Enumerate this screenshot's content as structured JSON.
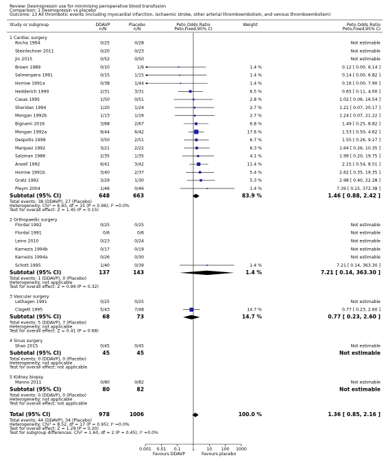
{
  "header": {
    "review": "Review: Desmopressin use for minimising perioperative blood transfusion",
    "comparison": "Comparison: 1 Desmopressin vs placebo",
    "outcome": "Outcome: 13 All thrombotic events (including myocardial infarction, ischaemic stroke, other arterial thromboembolism, and venous thromboembolism)"
  },
  "chart_data": {
    "type": "forest",
    "columns": {
      "study": "Study or subgroup",
      "group1": "DDAVP",
      "group1_sub": "n/N",
      "group2": "Placebo",
      "group2_sub": "n/N",
      "effect": "Peto Odds Ratio",
      "effect_sub": "Peto,Fixed,95% CI",
      "weight": "Weight",
      "effect_ci": "Peto Odds Ratio",
      "effect_ci_sub": "Peto,Fixed,95% CI"
    },
    "subgroups": [
      {
        "name": "1 Cardiac surgery",
        "studies": [
          {
            "name": "Rocha 1994",
            "ddavp": "0/25",
            "placebo": "0/28",
            "ci_label": "Not estimable"
          },
          {
            "name": "Steinlechner 2011",
            "ddavp": "0/20",
            "placebo": "0/23",
            "ci_label": "Not estimable"
          },
          {
            "name": "Jin 2015",
            "ddavp": "0/52",
            "placebo": "0/50",
            "ci_label": "Not estimable"
          },
          {
            "name": "Brown 1989",
            "ddavp": "0/10",
            "placebo": "1/9",
            "weight": 1.4,
            "weight_label": "1.4 %",
            "or": 0.12,
            "lo": 0.0,
            "hi": 6.14,
            "ci_label": "0.12 [ 0.00, 6.14 ]"
          },
          {
            "name": "Salmenpera 1991",
            "ddavp": "0/15",
            "placebo": "1/15",
            "weight": 1.4,
            "weight_label": "1.4 %",
            "or": 0.14,
            "lo": 0.0,
            "hi": 6.82,
            "ci_label": "0.14 [ 0.00, 6.82 ]"
          },
          {
            "name": "Horrow 1991a",
            "ddavp": "0/38",
            "placebo": "1/44",
            "weight": 1.4,
            "weight_label": "1.4 %",
            "or": 0.16,
            "lo": 0.0,
            "hi": 7.9,
            "ci_label": "0.16 [ 0.00, 7.90 ]"
          },
          {
            "name": "Hedderich 1990",
            "ddavp": "2/31",
            "placebo": "3/31",
            "weight": 6.5,
            "weight_label": "6.5 %",
            "or": 0.65,
            "lo": 0.11,
            "hi": 4.0,
            "ci_label": "0.65 [ 0.11, 4.00 ]"
          },
          {
            "name": "Casas 1995",
            "ddavp": "1/50",
            "placebo": "0/51",
            "weight": 2.8,
            "weight_label": "2.8 %",
            "or": 1.02,
            "lo": 0.06,
            "hi": 16.54,
            "ci_label": "1.02 [ 0.06, 16.54 ]"
          },
          {
            "name": "Sheridan 1994",
            "ddavp": "1/20",
            "placebo": "1/24",
            "weight": 2.7,
            "weight_label": "2.7 %",
            "or": 1.21,
            "lo": 0.07,
            "hi": 20.17,
            "ci_label": "1.21 [ 0.07, 20.17 ]"
          },
          {
            "name": "Mongan 1992b",
            "ddavp": "1/13",
            "placebo": "1/16",
            "weight": 2.7,
            "weight_label": "2.7 %",
            "or": 1.24,
            "lo": 0.07,
            "hi": 21.22,
            "ci_label": "1.24 [ 0.07, 21.22 ]"
          },
          {
            "name": "Bignami 2016",
            "ddavp": "3/68",
            "placebo": "2/67",
            "weight": 6.8,
            "weight_label": "6.8 %",
            "or": 1.49,
            "lo": 0.25,
            "hi": 8.82,
            "ci_label": "1.49 [ 0.25, 8.82 ]"
          },
          {
            "name": "Mongan 1992a",
            "ddavp": "9/44",
            "placebo": "6/42",
            "weight": 17.6,
            "weight_label": "17.6 %",
            "or": 1.53,
            "lo": 0.5,
            "hi": 4.62,
            "ci_label": "1.53 [ 0.50, 4.62 ]"
          },
          {
            "name": "Despotis 1999",
            "ddavp": "3/50",
            "placebo": "2/51",
            "weight": 6.7,
            "weight_label": "6.7 %",
            "or": 1.55,
            "lo": 0.26,
            "hi": 9.27,
            "ci_label": "1.55 [ 0.26, 9.27 ]"
          },
          {
            "name": "Marquez 1992",
            "ddavp": "3/21",
            "placebo": "2/22",
            "weight": 6.3,
            "weight_label": "6.3 %",
            "or": 1.64,
            "lo": 0.26,
            "hi": 10.35,
            "ci_label": "1.64 [ 0.26, 10.35 ]"
          },
          {
            "name": "Salzman 1986",
            "ddavp": "2/35",
            "placebo": "1/35",
            "weight": 4.1,
            "weight_label": "4.1 %",
            "or": 1.99,
            "lo": 0.2,
            "hi": 19.75,
            "ci_label": "1.99 [ 0.20, 19.75 ]"
          },
          {
            "name": "Ansell 1992",
            "ddavp": "6/41",
            "placebo": "3/42",
            "weight": 11.4,
            "weight_label": "11.4 %",
            "or": 2.15,
            "lo": 0.54,
            "hi": 8.51,
            "ci_label": "2.15 [ 0.54, 8.51 ]"
          },
          {
            "name": "Horrow 1991b",
            "ddavp": "3/40",
            "placebo": "2/37",
            "weight": 5.4,
            "weight_label": "5.4 %",
            "or": 2.62,
            "lo": 0.35,
            "hi": 19.35,
            "ci_label": "2.62 [ 0.35, 19.35 ]"
          },
          {
            "name": "Gratz 1992",
            "ddavp": "3/29",
            "placebo": "1/30",
            "weight": 5.3,
            "weight_label": "5.3 %",
            "or": 2.98,
            "lo": 0.4,
            "hi": 22.28,
            "ci_label": "2.98 [ 0.40, 22.28 ]"
          },
          {
            "name": "Pleym 2004",
            "ddavp": "1/46",
            "placebo": "0/46",
            "weight": 1.4,
            "weight_label": "1.4 %",
            "or": 7.39,
            "lo": 0.15,
            "hi": 372.38,
            "ci_label": "7.39 [ 0.15, 372.38 ]"
          }
        ],
        "subtotal": {
          "label": "Subtotal (95% CI)",
          "ddavp": 648,
          "placebo": 663,
          "weight": 83.9,
          "weight_label": "83.9 %",
          "or": 1.46,
          "lo": 0.88,
          "hi": 2.42,
          "ci_label": "1.46 [ 0.88, 2.42 ]"
        },
        "notes": [
          "Total events: 38 (DDAVP), 27 (Placebo)",
          "Heterogeneity: Chi² = 6.93, df = 15 (P = 0.96); I² =0.0%",
          "Test for overall effect: Z = 1.45 (P = 0.15)"
        ]
      },
      {
        "name": "2 Orthopaedic surgery",
        "studies": [
          {
            "name": "Flordal 1992",
            "ddavp": "0/25",
            "placebo": "0/25",
            "ci_label": "Not estimable"
          },
          {
            "name": "Flordal 1991",
            "ddavp": "0/6",
            "placebo": "0/6",
            "ci_label": "Not estimable"
          },
          {
            "name": "Leino 2010",
            "ddavp": "0/23",
            "placebo": "0/24",
            "ci_label": "Not estimable"
          },
          {
            "name": "Karnezis 1994b",
            "ddavp": "0/17",
            "placebo": "0/19",
            "ci_label": "Not estimable"
          },
          {
            "name": "Karnezis 1994a",
            "ddavp": "0/26",
            "placebo": "0/30",
            "ci_label": "Not estimable"
          },
          {
            "name": "Schott 1995",
            "ddavp": "1/40",
            "placebo": "0/39",
            "weight": 1.4,
            "weight_label": "1.4 %",
            "or": 7.21,
            "lo": 0.14,
            "hi": 363.3,
            "ci_label": "7.21 [ 0.14, 363.30 ]"
          }
        ],
        "subtotal": {
          "label": "Subtotal (95% CI)",
          "ddavp": 137,
          "placebo": 143,
          "weight": 1.4,
          "weight_label": "1.4 %",
          "or": 7.21,
          "lo": 0.14,
          "hi": 363.3,
          "ci_label": "7.21 [ 0.14, 363.30 ]"
        },
        "notes": [
          "Total events: 1 (DDAVP), 0 (Placebo)",
          "Heterogeneity: not applicable",
          "Test for overall effect: Z = 0.99 (P = 0.32)"
        ]
      },
      {
        "name": "3 Vascular surgery",
        "studies": [
          {
            "name": "Lethagen 1991",
            "ddavp": "0/25",
            "placebo": "0/25",
            "ci_label": "Not estimable"
          },
          {
            "name": "Clagett 1995",
            "ddavp": "5/43",
            "placebo": "7/48",
            "weight": 14.7,
            "weight_label": "14.7 %",
            "or": 0.77,
            "lo": 0.23,
            "hi": 2.6,
            "ci_label": "0.77 [ 0.23, 2.60 ]"
          }
        ],
        "subtotal": {
          "label": "Subtotal (95% CI)",
          "ddavp": 68,
          "placebo": 73,
          "weight": 14.7,
          "weight_label": "14.7 %",
          "or": 0.77,
          "lo": 0.23,
          "hi": 2.6,
          "ci_label": "0.77 [ 0.23, 2.60 ]"
        },
        "notes": [
          "Total events: 5 (DDAVP), 7 (Placebo)",
          "Heterogeneity: not applicable",
          "Test for overall effect: Z = 0.41 (P = 0.68)"
        ]
      },
      {
        "name": "4 Sinus surgery",
        "studies": [
          {
            "name": "Shao 2015",
            "ddavp": "0/45",
            "placebo": "0/45",
            "ci_label": "Not estimable"
          }
        ],
        "subtotal": {
          "label": "Subtotal (95% CI)",
          "ddavp": 45,
          "placebo": 45,
          "ci_label": "Not estimable"
        },
        "notes": [
          "Total events: 0 (DDAVP), 0 (Placebo)",
          "Heterogeneity: not applicable",
          "Test for overall effect: not applicable"
        ]
      },
      {
        "name": "5 Kidney biopsy",
        "studies": [
          {
            "name": "Manno 2011",
            "ddavp": "0/80",
            "placebo": "0/82",
            "ci_label": "Not estimable"
          }
        ],
        "subtotal": {
          "label": "Subtotal (95% CI)",
          "ddavp": 80,
          "placebo": 82,
          "ci_label": "Not estimable"
        },
        "notes": [
          "Total events: 0 (DDAVP), 0 (Placebo)",
          "Heterogeneity: not applicable",
          "Test for overall effect: not applicable"
        ]
      }
    ],
    "total": {
      "label": "Total (95% CI)",
      "ddavp": 978,
      "placebo": 1006,
      "weight": 100,
      "weight_label": "100.0 %",
      "or": 1.36,
      "lo": 0.85,
      "hi": 2.16,
      "ci_label": "1.36 [ 0.85, 2.16 ]"
    },
    "total_notes": [
      "Total events: 44 (DDAVP), 34 (Placebo)",
      "Heterogeneity: Chi² = 8.52, df = 17 (P = 0.95); I² =0.0%",
      "Test for overall effect: Z = 1.29 (P = 0.20)",
      "Test for subgroup differences: Chi² = 1.60, df = 2 (P = 0.45), I² =0.0%"
    ],
    "xlim": [
      0.001,
      1000
    ],
    "xticks": [
      0.001,
      0.01,
      0.1,
      1,
      10,
      100,
      1000
    ],
    "log": true,
    "favours_left": "Favours DDAVP",
    "favours_right": "Favours placebo",
    "color": "#1c1ca0",
    "summary_color": "#000000"
  }
}
